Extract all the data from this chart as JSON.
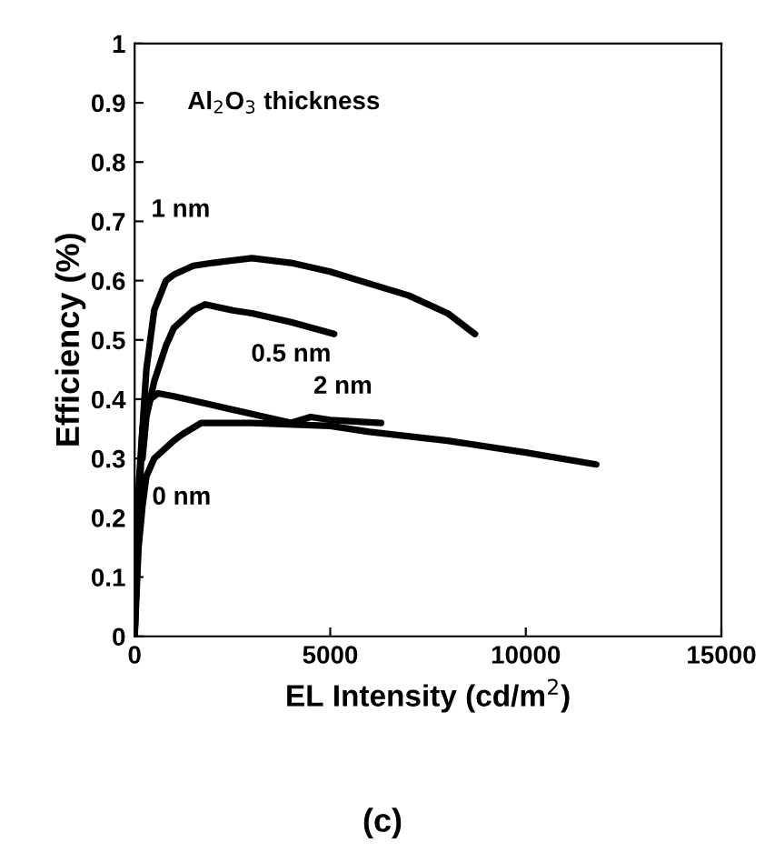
{
  "chart_data": {
    "type": "line",
    "xlabel": "EL Intensity (cd/m$^{2}$)",
    "ylabel": "Efficiency (%)",
    "xlim": [
      0,
      15000
    ],
    "ylim": [
      0,
      1
    ],
    "xticks": [
      0,
      5000,
      10000,
      15000
    ],
    "yticks": [
      0,
      0.1,
      0.2,
      0.3,
      0.4,
      0.5,
      0.6,
      0.7,
      0.8,
      0.9,
      1
    ],
    "grid": false,
    "legend": false,
    "marker": "none",
    "line_style": "solid",
    "series": [
      {
        "name": "1 nm",
        "color": "#000000",
        "x": [
          0,
          100,
          200,
          300,
          500,
          800,
          1000,
          1500,
          2000,
          3000,
          4000,
          5000,
          6000,
          7000,
          8000,
          8700
        ],
        "values": [
          0,
          0.2,
          0.35,
          0.45,
          0.55,
          0.6,
          0.61,
          0.625,
          0.63,
          0.638,
          0.63,
          0.615,
          0.595,
          0.575,
          0.545,
          0.51
        ]
      },
      {
        "name": "0.5 nm",
        "color": "#000000",
        "x": [
          200,
          300,
          500,
          800,
          1000,
          1500,
          1800,
          2500,
          3000,
          4000,
          5100
        ],
        "values": [
          0.3,
          0.37,
          0.43,
          0.49,
          0.52,
          0.55,
          0.56,
          0.55,
          0.545,
          0.53,
          0.51
        ]
      },
      {
        "name": "2 nm",
        "color": "#000000",
        "x": [
          0,
          100,
          200,
          400,
          600,
          1000,
          2000,
          3000,
          4000,
          4500,
          5000,
          6300
        ],
        "values": [
          0,
          0.25,
          0.35,
          0.4,
          0.41,
          0.405,
          0.39,
          0.375,
          0.36,
          0.37,
          0.365,
          0.36
        ]
      },
      {
        "name": "0 nm",
        "color": "#000000",
        "x": [
          0,
          100,
          200,
          300,
          500,
          1000,
          1200,
          1700,
          3000,
          5000,
          6000,
          8000,
          10000,
          11800
        ],
        "values": [
          0,
          0.15,
          0.22,
          0.27,
          0.3,
          0.33,
          0.34,
          0.36,
          0.36,
          0.355,
          0.345,
          0.33,
          0.31,
          0.29
        ]
      }
    ],
    "annotations": [
      "Al$_{2}$O$_{3}$ thickness",
      "(c)"
    ]
  }
}
